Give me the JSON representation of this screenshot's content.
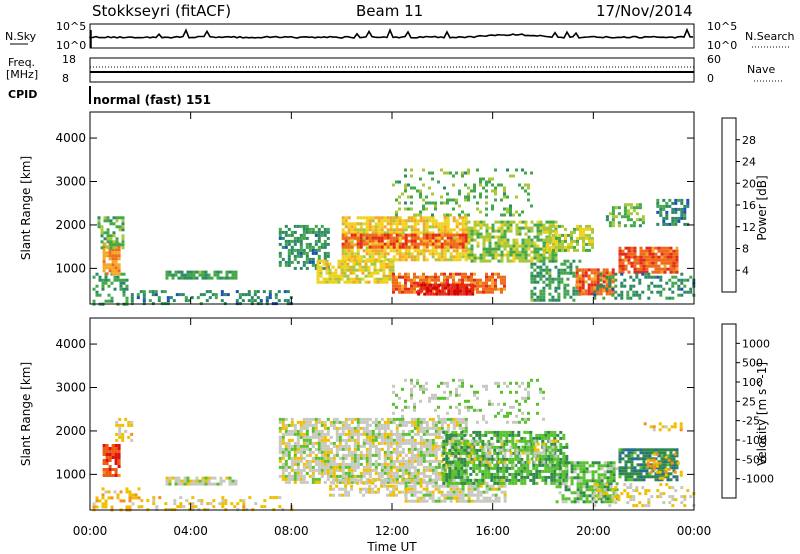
{
  "header": {
    "station": "Stokkseyri (fitACF)",
    "beam": "Beam 11",
    "date": "17/Nov/2014"
  },
  "top_panels": {
    "nsky_label": "N.Sky",
    "nsky_ticks": [
      "10^5",
      "10^0"
    ],
    "nsearch_label": "N.Search",
    "nsearch_ticks": [
      "10^5",
      "10^0"
    ],
    "freq_label": "Freq.",
    "freq_unit": "[MHz]",
    "freq_ticks": [
      "18",
      "8"
    ],
    "nave_label": "Nave",
    "nave_ticks": [
      "60",
      "0"
    ],
    "cpid_label": "CPID",
    "cpid_value": "normal (fast) 151"
  },
  "chart_data": [
    {
      "type": "heatmap",
      "name": "power",
      "ylabel": "Slant Range [km]",
      "xlabel": "Time UT",
      "x_ticks": [
        "00:00",
        "04:00",
        "08:00",
        "12:00",
        "16:00",
        "20:00",
        "00:00"
      ],
      "x_range_hours": [
        0,
        24
      ],
      "y_range_km": [
        180,
        4600
      ],
      "y_ticks": [
        1000,
        2000,
        3000,
        4000
      ],
      "colorbar_label": "Power [dB]",
      "colorbar_ticks": [
        "28",
        "24",
        "20",
        "16",
        "12",
        "8",
        "4"
      ],
      "colorbar_colors": [
        "#0000d8",
        "#1e50b4",
        "#2e8a64",
        "#43a84a",
        "#a8c83a",
        "#f0d21e",
        "#f5a623",
        "#ef6a1a",
        "#e42a1a",
        "#d40000"
      ],
      "color_range": [
        0,
        32
      ],
      "regions": [
        {
          "t": [
            0.1,
            1.5
          ],
          "r": [
            200,
            900
          ],
          "v": 10,
          "d": 0.4
        },
        {
          "t": [
            0.5,
            1.2
          ],
          "r": [
            900,
            1600
          ],
          "v": 22,
          "d": 0.85
        },
        {
          "t": [
            0.3,
            1.3
          ],
          "r": [
            1500,
            2200
          ],
          "v": 12,
          "d": 0.5
        },
        {
          "t": [
            1.5,
            8.0
          ],
          "r": [
            200,
            500
          ],
          "v": 8,
          "d": 0.35
        },
        {
          "t": [
            3.0,
            5.8
          ],
          "r": [
            750,
            950
          ],
          "v": 10,
          "d": 0.8
        },
        {
          "t": [
            7.5,
            9.5
          ],
          "r": [
            1000,
            2000
          ],
          "v": 9,
          "d": 0.55
        },
        {
          "t": [
            9.0,
            12.0
          ],
          "r": [
            700,
            1200
          ],
          "v": 17,
          "d": 0.75
        },
        {
          "t": [
            10.0,
            15.0
          ],
          "r": [
            1200,
            2200
          ],
          "v": 18,
          "d": 0.8
        },
        {
          "t": [
            10.0,
            15.0
          ],
          "r": [
            1500,
            1800
          ],
          "v": 25,
          "d": 0.7
        },
        {
          "t": [
            12.0,
            16.5
          ],
          "r": [
            450,
            900
          ],
          "v": 24,
          "d": 0.8
        },
        {
          "t": [
            13.0,
            15.2
          ],
          "r": [
            400,
            650
          ],
          "v": 29,
          "d": 0.9
        },
        {
          "t": [
            15.0,
            18.5
          ],
          "r": [
            1200,
            2100
          ],
          "v": 14,
          "d": 0.7
        },
        {
          "t": [
            12.0,
            17.5
          ],
          "r": [
            2200,
            3300
          ],
          "v": 12,
          "d": 0.22
        },
        {
          "t": [
            17.5,
            19.5
          ],
          "r": [
            300,
            1200
          ],
          "v": 10,
          "d": 0.5
        },
        {
          "t": [
            18.0,
            20.0
          ],
          "r": [
            1400,
            2000
          ],
          "v": 15,
          "d": 0.7
        },
        {
          "t": [
            19.3,
            20.8
          ],
          "r": [
            400,
            1000
          ],
          "v": 24,
          "d": 0.85
        },
        {
          "t": [
            21.0,
            23.3
          ],
          "r": [
            900,
            1500
          ],
          "v": 25,
          "d": 0.85
        },
        {
          "t": [
            20.0,
            24.0
          ],
          "r": [
            300,
            900
          ],
          "v": 9,
          "d": 0.35
        },
        {
          "t": [
            22.5,
            23.8
          ],
          "r": [
            2000,
            2600
          ],
          "v": 8,
          "d": 0.5
        },
        {
          "t": [
            20.5,
            22.0
          ],
          "r": [
            2000,
            2500
          ],
          "v": 12,
          "d": 0.5
        }
      ]
    },
    {
      "type": "heatmap",
      "name": "velocity",
      "ylabel": "Slant Range [km]",
      "xlabel": "Time UT",
      "x_ticks": [
        "00:00",
        "04:00",
        "08:00",
        "12:00",
        "16:00",
        "20:00",
        "00:00"
      ],
      "x_range_hours": [
        0,
        24
      ],
      "y_range_km": [
        180,
        4600
      ],
      "y_ticks": [
        1000,
        2000,
        3000,
        4000
      ],
      "colorbar_label": "Velocity [m s^-1]",
      "colorbar_ticks": [
        "1000",
        "500",
        "100",
        "25",
        "-25",
        "-100",
        "-500",
        "-1000"
      ],
      "colorbar_colors": [
        "#1840c8",
        "#2a6a96",
        "#2e8a46",
        "#58c22e",
        "#c8c8c0",
        "#f0c000",
        "#f59020",
        "#ee5a10",
        "#e01010"
      ],
      "color_range": [
        -1250,
        1250
      ],
      "regions": [
        {
          "t": [
            0.5,
            1.2
          ],
          "r": [
            1000,
            1700
          ],
          "v": 900,
          "d": 0.8
        },
        {
          "t": [
            0.1,
            2.0
          ],
          "r": [
            200,
            700
          ],
          "v": 300,
          "d": 0.35
        },
        {
          "t": [
            1.0,
            1.6
          ],
          "r": [
            1800,
            2300
          ],
          "v": 200,
          "d": 0.5
        },
        {
          "t": [
            2.0,
            8.0
          ],
          "r": [
            200,
            500
          ],
          "v": 200,
          "d": 0.3
        },
        {
          "t": [
            3.0,
            5.8
          ],
          "r": [
            750,
            950
          ],
          "v": 0,
          "d": 0.75
        },
        {
          "t": [
            7.5,
            15.0
          ],
          "r": [
            800,
            2300
          ],
          "v": 0,
          "d": 0.75
        },
        {
          "t": [
            9.5,
            12.5
          ],
          "r": [
            500,
            900
          ],
          "v": 100,
          "d": 0.5
        },
        {
          "t": [
            12.5,
            16.5
          ],
          "r": [
            400,
            900
          ],
          "v": 0,
          "d": 0.7
        },
        {
          "t": [
            14.0,
            19.0
          ],
          "r": [
            800,
            2000
          ],
          "v": -400,
          "d": 0.7
        },
        {
          "t": [
            15.0,
            18.5
          ],
          "r": [
            1200,
            1800
          ],
          "v": 0,
          "d": 0.4
        },
        {
          "t": [
            12.0,
            18.0
          ],
          "r": [
            2200,
            3200
          ],
          "v": -100,
          "d": 0.18
        },
        {
          "t": [
            18.5,
            21.0
          ],
          "r": [
            400,
            1300
          ],
          "v": -300,
          "d": 0.7
        },
        {
          "t": [
            21.0,
            23.3
          ],
          "r": [
            900,
            1600
          ],
          "v": -600,
          "d": 0.75
        },
        {
          "t": [
            22.0,
            23.5
          ],
          "r": [
            900,
            1500
          ],
          "v": 400,
          "d": 0.25
        },
        {
          "t": [
            22.0,
            23.5
          ],
          "r": [
            2000,
            2200
          ],
          "v": 300,
          "d": 0.5
        },
        {
          "t": [
            20.0,
            24.0
          ],
          "r": [
            250,
            800
          ],
          "v": 150,
          "d": 0.3
        }
      ]
    }
  ]
}
